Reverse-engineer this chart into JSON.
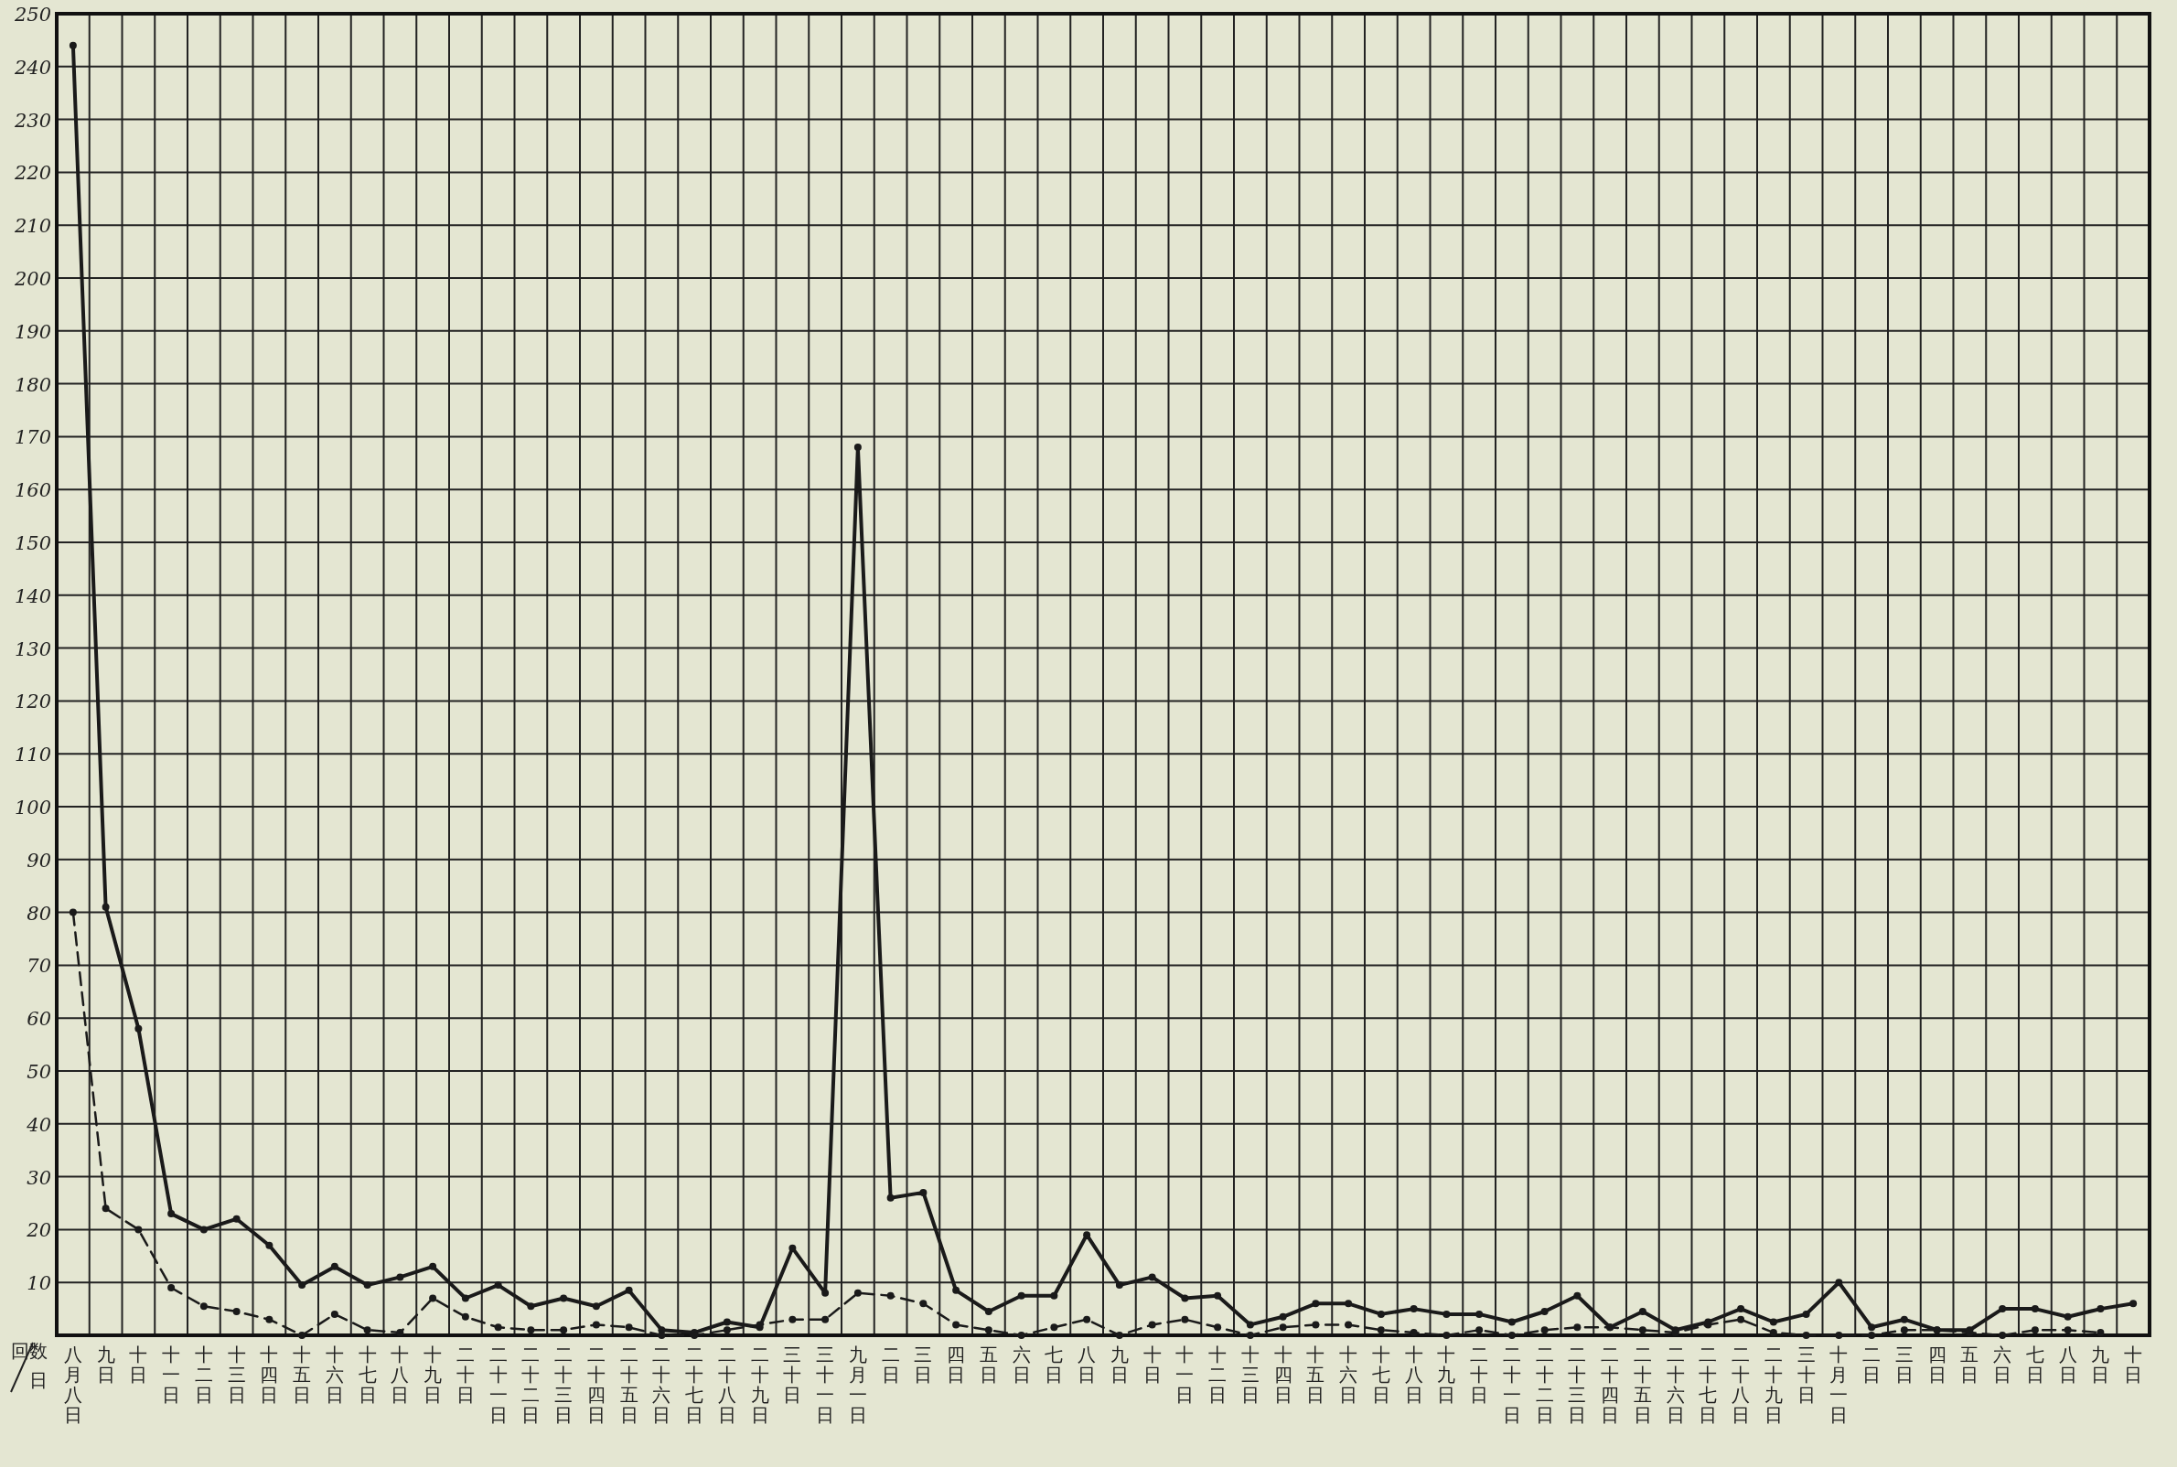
{
  "chart_data": {
    "type": "line",
    "xlabel": "日",
    "ylabel": "回数",
    "categories": [
      "八月八日",
      "九日",
      "十日",
      "十一日",
      "十二日",
      "十三日",
      "十四日",
      "十五日",
      "十六日",
      "十七日",
      "十八日",
      "十九日",
      "二十日",
      "二十一日",
      "二十二日",
      "二十三日",
      "二十四日",
      "二十五日",
      "二十六日",
      "二十七日",
      "二十八日",
      "二十九日",
      "三十日",
      "三十一日",
      "九月一日",
      "二日",
      "三日",
      "四日",
      "五日",
      "六日",
      "七日",
      "八日",
      "九日",
      "十日",
      "十一日",
      "十二日",
      "十三日",
      "十四日",
      "十五日",
      "十六日",
      "十七日",
      "十八日",
      "十九日",
      "二十日",
      "二十一日",
      "二十二日",
      "二十三日",
      "二十四日",
      "二十五日",
      "二十六日",
      "二十七日",
      "二十八日",
      "二十九日",
      "三十日",
      "十月一日",
      "二日",
      "三日",
      "四日",
      "五日",
      "六日",
      "七日",
      "八日",
      "九日",
      "十日"
    ],
    "series": [
      {
        "color": "#1a1a1a",
        "line_style": "solid",
        "values": [
          244,
          81,
          58,
          23,
          20,
          22,
          17,
          9.5,
          13,
          9.5,
          11,
          13,
          7,
          9.5,
          5.5,
          7,
          5.5,
          8.5,
          1,
          0.5,
          2.5,
          1.5,
          16.5,
          8,
          168,
          26,
          27,
          8.5,
          4.5,
          7.5,
          7.5,
          19,
          9.5,
          11,
          7,
          7.5,
          2,
          3.5,
          6,
          6,
          4,
          5,
          4,
          4,
          2.5,
          4.5,
          7.5,
          1.5,
          4.5,
          1,
          2.5,
          5,
          2.5,
          4,
          10,
          1.5,
          3,
          1,
          1,
          5,
          5,
          3.5,
          5,
          6
        ]
      },
      {
        "color": "#1a1a1a",
        "line_style": "dashed",
        "values": [
          80,
          24,
          20,
          9,
          5.5,
          4.5,
          3,
          0,
          4,
          1,
          0.5,
          7,
          3.5,
          1.5,
          1,
          1,
          2,
          1.5,
          0,
          0,
          1,
          2,
          3,
          3,
          8,
          7.5,
          6,
          2,
          1,
          0,
          1.5,
          3,
          0,
          2,
          3,
          1.5,
          0,
          1.5,
          2,
          2,
          1,
          0.5,
          0,
          1,
          0,
          1,
          1.5,
          1.5,
          1,
          0.5,
          2,
          3,
          0.5,
          0,
          0,
          0,
          1,
          1,
          0.5,
          0,
          1,
          1,
          0.5,
          null
        ]
      }
    ],
    "ylim": [
      0,
      250
    ],
    "yticks": [
      10,
      20,
      30,
      40,
      50,
      60,
      70,
      80,
      90,
      100,
      110,
      120,
      130,
      140,
      150,
      160,
      170,
      180,
      190,
      200,
      210,
      220,
      230,
      240,
      250
    ],
    "grid": true,
    "marker": "circle"
  }
}
